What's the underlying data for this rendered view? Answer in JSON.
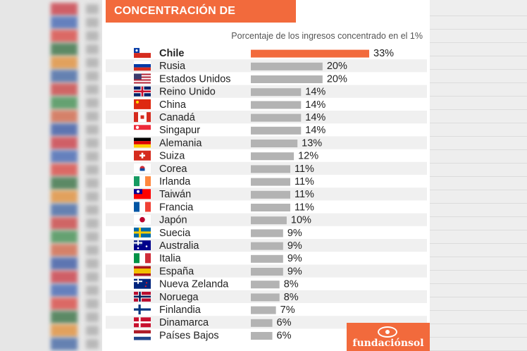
{
  "header": {
    "title": "CONCENTRACIÓN DE INGRESOS",
    "subtitle": "Porcentaje de los ingresos concentrado en el 1%"
  },
  "logo": {
    "text": "fundaciónsol"
  },
  "colors": {
    "accent": "#f26a3c",
    "bar": "#b3b3b3",
    "highlight_bar": "#f26a3c",
    "row_stripe": "#f0f0f0"
  },
  "chart_data": {
    "type": "bar",
    "orientation": "horizontal",
    "title": "CONCENTRACIÓN DE INGRESOS",
    "subtitle": "Porcentaje de los ingresos concentrado en el 1%",
    "unit": "%",
    "highlight": "Chile",
    "categories": [
      "Chile",
      "Rusia",
      "Estados Unidos",
      "Reino Unido",
      "China",
      "Canadá",
      "Singapur",
      "Alemania",
      "Suiza",
      "Corea",
      "Irlanda",
      "Taiwán",
      "Francia",
      "Japón",
      "Suecia",
      "Australia",
      "Italia",
      "España",
      "Nueva Zelanda",
      "Noruega",
      "Finlandia",
      "Dinamarca",
      "Países Bajos"
    ],
    "values": [
      33,
      20,
      20,
      14,
      14,
      14,
      14,
      13,
      12,
      11,
      11,
      11,
      11,
      10,
      9,
      9,
      9,
      9,
      8,
      8,
      7,
      6,
      6
    ],
    "labels": [
      "33%",
      "20%",
      "20%",
      "14%",
      "14%",
      "14%",
      "14%",
      "13%",
      "12%",
      "11%",
      "11%",
      "11%",
      "11%",
      "10%",
      "9%",
      "9%",
      "9%",
      "9%",
      "8%",
      "8%",
      "7%",
      "6%",
      "6%"
    ],
    "flags": [
      "chile-flag-icon",
      "russia-flag-icon",
      "usa-flag-icon",
      "uk-flag-icon",
      "china-flag-icon",
      "canada-flag-icon",
      "singapore-flag-icon",
      "germany-flag-icon",
      "switzerland-flag-icon",
      "korea-flag-icon",
      "ireland-flag-icon",
      "taiwan-flag-icon",
      "france-flag-icon",
      "japan-flag-icon",
      "sweden-flag-icon",
      "australia-flag-icon",
      "italy-flag-icon",
      "spain-flag-icon",
      "new-zealand-flag-icon",
      "norway-flag-icon",
      "finland-flag-icon",
      "denmark-flag-icon",
      "netherlands-flag-icon"
    ]
  }
}
